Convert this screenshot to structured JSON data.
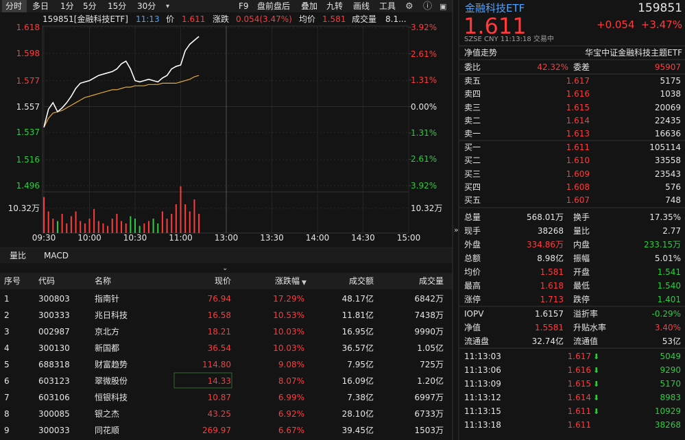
{
  "toolbar": {
    "periods": [
      "分时",
      "多日",
      "1分",
      "5分",
      "15分",
      "30分"
    ],
    "tools": [
      "F9",
      "盘前盘后",
      "叠加",
      "九转",
      "画线",
      "工具"
    ]
  },
  "info": {
    "code": "159851[金融科技ETF]",
    "time": "11:13",
    "price_label": "价",
    "price": "1.611",
    "change_label": "涨跌",
    "change": "0.054(3.47%)",
    "avg_label": "均价",
    "avg": "1.581",
    "volume_label": "成交量",
    "volume": "8.1..."
  },
  "chart_data": {
    "type": "line",
    "x": [
      "09:30",
      "09:33",
      "09:36",
      "09:39",
      "09:42",
      "09:45",
      "09:48",
      "09:51",
      "09:54",
      "09:57",
      "10:00",
      "10:03",
      "10:06",
      "10:09",
      "10:12",
      "10:15",
      "10:18",
      "10:21",
      "10:24",
      "10:27",
      "10:30",
      "10:33",
      "10:36",
      "10:39",
      "10:42",
      "10:45",
      "10:48",
      "10:51",
      "10:54",
      "10:57",
      "11:00",
      "11:03",
      "11:06",
      "11:09",
      "11:12"
    ],
    "series": [
      {
        "color": "#ffffff",
        "values": [
          1.541,
          1.555,
          1.56,
          1.553,
          1.556,
          1.56,
          1.565,
          1.571,
          1.575,
          1.576,
          1.577,
          1.579,
          1.581,
          1.582,
          1.583,
          1.584,
          1.586,
          1.59,
          1.592,
          1.586,
          1.577,
          1.576,
          1.577,
          1.578,
          1.577,
          1.576,
          1.579,
          1.581,
          1.586,
          1.588,
          1.589,
          1.6,
          1.605,
          1.608,
          1.611
        ]
      },
      {
        "color": "#e8a93a",
        "values": [
          1.541,
          1.548,
          1.552,
          1.553,
          1.554,
          1.556,
          1.558,
          1.56,
          1.562,
          1.564,
          1.565,
          1.566,
          1.567,
          1.568,
          1.569,
          1.57,
          1.57,
          1.571,
          1.572,
          1.572,
          1.573,
          1.573,
          1.573,
          1.574,
          1.574,
          1.574,
          1.575,
          1.575,
          1.575,
          1.575,
          1.576,
          1.577,
          1.578,
          1.58,
          1.581
        ]
      }
    ],
    "xlim": [
      "09:30",
      "15:00"
    ],
    "xticks": [
      "09:30",
      "10:00",
      "10:30",
      "11:00",
      "13:00",
      "13:30",
      "14:00",
      "14:30",
      "15:00"
    ],
    "ylim": [
      1.496,
      1.618
    ],
    "yticks": [
      1.618,
      1.598,
      1.577,
      1.557,
      1.537,
      1.516,
      1.496
    ],
    "y2lim": [
      -3.92,
      3.92
    ],
    "y2ticks": [
      {
        "value": 3.92,
        "label": "3.92%"
      },
      {
        "value": 2.61,
        "label": "2.61%"
      },
      {
        "value": 1.31,
        "label": "1.31%"
      },
      {
        "value": 0,
        "label": "0.00%"
      },
      {
        "value": -1.31,
        "label": "1.31%"
      },
      {
        "value": -2.61,
        "label": "2.61%"
      },
      {
        "value": -3.92,
        "label": "3.92%"
      }
    ],
    "volume": {
      "up_color": "#ff3b3b",
      "down_color": "#2ecc40",
      "ylim": [
        0,
        20
      ],
      "yticks": [
        {
          "value": 10.32,
          "label": "10.32万"
        }
      ],
      "values": [
        15,
        9,
        6,
        5,
        8,
        4,
        7,
        9,
        5,
        4,
        6,
        10,
        5,
        4,
        3,
        6,
        8,
        5,
        4,
        7,
        6,
        3,
        4,
        5,
        6,
        4,
        9,
        6,
        8,
        12,
        19.5,
        12,
        9,
        14,
        8
      ]
    }
  },
  "indicators": [
    "量比",
    "MACD"
  ],
  "table": {
    "headers": [
      "序号",
      "代码",
      "名称",
      "现价",
      "涨跌幅",
      "成交额",
      "成交量"
    ],
    "rows": [
      [
        "1",
        "300803",
        "指南针",
        "76.94",
        "17.29%",
        "48.17亿",
        "6842万"
      ],
      [
        "2",
        "300333",
        "兆日科技",
        "16.58",
        "10.53%",
        "11.81亿",
        "7438万"
      ],
      [
        "3",
        "002987",
        "京北方",
        "18.21",
        "10.03%",
        "16.95亿",
        "9990万"
      ],
      [
        "4",
        "300130",
        "新国都",
        "36.54",
        "10.03%",
        "36.57亿",
        "1.05亿"
      ],
      [
        "5",
        "688318",
        "财富趋势",
        "114.80",
        "9.08%",
        "7.95亿",
        "725万"
      ],
      [
        "6",
        "603123",
        "翠微股份",
        "14.33",
        "8.07%",
        "16.09亿",
        "1.20亿"
      ],
      [
        "7",
        "603106",
        "恒银科技",
        "10.87",
        "6.99%",
        "7.38亿",
        "6997万"
      ],
      [
        "8",
        "300085",
        "银之杰",
        "43.25",
        "6.92%",
        "28.10亿",
        "6733万"
      ],
      [
        "9",
        "300033",
        "同花顺",
        "269.97",
        "6.67%",
        "39.45亿",
        "1503万"
      ]
    ]
  },
  "quote": {
    "name": "金融科技ETF",
    "code": "159851",
    "price": "1.611",
    "change": "+0.054",
    "pct": "+3.47%",
    "status": "SZSE   CNY   11:13:18   交易中",
    "tabs": [
      "净值走势",
      "华宝中证金融科技主题ETF"
    ],
    "ratio": [
      "委比",
      "42.32%",
      "委差",
      "95907"
    ],
    "asks": [
      [
        "卖五",
        "1.617",
        "5175"
      ],
      [
        "卖四",
        "1.616",
        "1038"
      ],
      [
        "卖三",
        "1.615",
        "20069"
      ],
      [
        "卖二",
        "1.614",
        "22435"
      ],
      [
        "卖一",
        "1.613",
        "16636"
      ]
    ],
    "bids": [
      [
        "买一",
        "1.611",
        "105114"
      ],
      [
        "买二",
        "1.610",
        "33558"
      ],
      [
        "买三",
        "1.609",
        "23543"
      ],
      [
        "买四",
        "1.608",
        "576"
      ],
      [
        "买五",
        "1.607",
        "748"
      ]
    ],
    "stats": [
      [
        "总量",
        "568.01万",
        "换手",
        "17.35%"
      ],
      [
        "现手",
        "38268",
        "量比",
        "2.77"
      ],
      [
        "外盘",
        "334.86万",
        "内盘",
        "233.15万"
      ],
      [
        "总额",
        "8.98亿",
        "振幅",
        "5.01%"
      ],
      [
        "均价",
        "1.581",
        "开盘",
        "1.541"
      ],
      [
        "最高",
        "1.618",
        "最低",
        "1.540"
      ],
      [
        "涨停",
        "1.713",
        "跌停",
        "1.401"
      ]
    ],
    "stat_colors": [
      [
        "white",
        "white"
      ],
      [
        "white",
        "white"
      ],
      [
        "red",
        "green"
      ],
      [
        "white",
        "white"
      ],
      [
        "red",
        "green"
      ],
      [
        "red",
        "green"
      ],
      [
        "red",
        "green"
      ]
    ],
    "fund": [
      [
        "IOPV",
        "1.6157",
        "溢折率",
        "-0.29%"
      ],
      [
        "净值",
        "1.5581",
        "升贴水率",
        "3.40%"
      ],
      [
        "流通盘",
        "32.74亿",
        "流通值",
        "53亿"
      ]
    ],
    "fund_colors": [
      [
        "white",
        "green"
      ],
      [
        "red",
        "red"
      ],
      [
        "white",
        "white"
      ]
    ],
    "ticks": [
      {
        "time": "11:13:03",
        "price": "1.617",
        "volume": "5049",
        "down": true
      },
      {
        "time": "11:13:06",
        "price": "1.616",
        "volume": "9290",
        "down": true
      },
      {
        "time": "11:13:09",
        "price": "1.615",
        "volume": "5170",
        "down": true
      },
      {
        "time": "11:13:12",
        "price": "1.614",
        "volume": "8983",
        "down": true
      },
      {
        "time": "11:13:15",
        "price": "1.611",
        "volume": "10929",
        "down": true
      },
      {
        "time": "11:13:18",
        "price": "1.611",
        "volume": "38268",
        "down": false
      }
    ]
  }
}
